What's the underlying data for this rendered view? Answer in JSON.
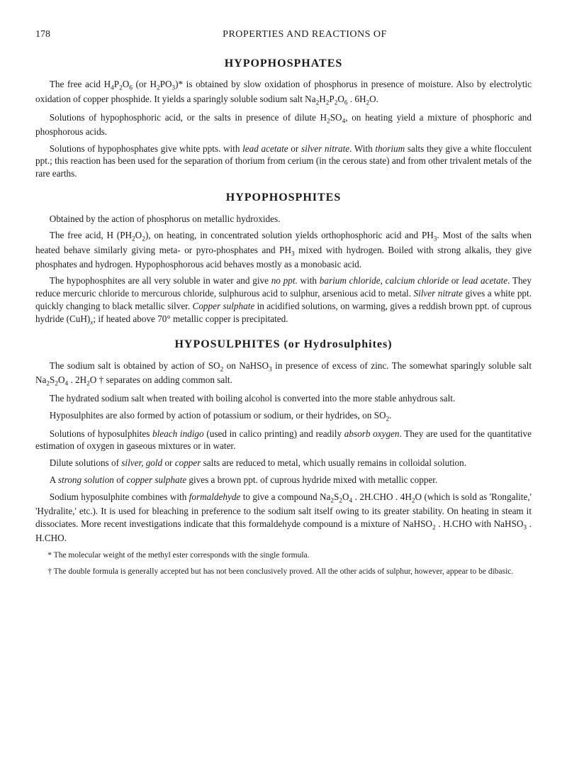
{
  "page_number": "178",
  "running_head": "PROPERTIES AND REACTIONS OF",
  "sections": [
    {
      "title": "HYPOPHOSPHATES",
      "paragraphs": [
        "The free acid H₄P₂O₆ (or H₂PO₃)* is obtained by slow oxidation of phosphorus in presence of moisture. Also by electrolytic oxidation of copper phosphide. It yields a sparingly soluble sodium salt Na₂H₂P₂O₆ . 6H₂O.",
        "Solutions of hypophosphoric acid, or the salts in presence of dilute H₂SO₄, on heating yield a mixture of phosphoric and phosphorous acids.",
        "Solutions of hypophosphates give white ppts. with lead acetate or silver nitrate. With thorium salts they give a white flocculent ppt.; this reaction has been used for the separation of thorium from cerium (in the cerous state) and from other trivalent metals of the rare earths."
      ]
    },
    {
      "title": "HYPOPHOSPHITES",
      "paragraphs": [
        "Obtained by the action of phosphorus on metallic hydroxides.",
        "The free acid, H (PH₂O₂), on heating, in concentrated solution yields orthophosphoric acid and PH₃. Most of the salts when heated behave similarly giving meta- or pyro-phosphates and PH₃ mixed with hydrogen. Boiled with strong alkalis, they give phosphates and hydrogen. Hypophosphorous acid behaves mostly as a monobasic acid.",
        "The hypophosphites are all very soluble in water and give no ppt. with barium chloride, calcium chloride or lead acetate. They reduce mercuric chloride to mercurous chloride, sulphurous acid to sulphur, arsenious acid to metal. Silver nitrate gives a white ppt. quickly changing to black metallic silver. Copper sulphate in acidified solutions, on warming, gives a reddish brown ppt. of cuprous hydride (CuH)ₓ; if heated above 70° metallic copper is precipitated."
      ]
    },
    {
      "title": "HYPOSULPHITES (or Hydrosulphites)",
      "paragraphs": [
        "The sodium salt is obtained by action of SO₂ on NaHSO₃ in presence of excess of zinc. The somewhat sparingly soluble salt Na₂S₂O₄ . 2H₂O † separates on adding common salt.",
        "The hydrated sodium salt when treated with boiling alcohol is converted into the more stable anhydrous salt.",
        "Hyposulphites are also formed by action of potassium or sodium, or their hydrides, on SO₂.",
        "Solutions of hyposulphites bleach indigo (used in calico printing) and readily absorb oxygen. They are used for the quantitative estimation of oxygen in gaseous mixtures or in water.",
        "Dilute solutions of silver, gold or copper salts are reduced to metal, which usually remains in colloidal solution.",
        "A strong solution of copper sulphate gives a brown ppt. of cuprous hydride mixed with metallic copper.",
        "Sodium hyposulphite combines with formaldehyde to give a compound Na₂S₂O₄ . 2H.CHO . 4H₂O (which is sold as 'Rongalite,' 'Hydralite,' etc.). It is used for bleaching in preference to the sodium salt itself owing to its greater stability. On heating in steam it dissociates. More recent investigations indicate that this formaldehyde compound is a mixture of NaHSO₂ . H.CHO with NaHSO₃ . H.CHO."
      ]
    }
  ],
  "footnotes": [
    "* The molecular weight of the methyl ester corresponds with the single formula.",
    "† The double formula is generally accepted but has not been conclusively proved. All the other acids of sulphur, however, appear to be dibasic."
  ],
  "typography": {
    "body_font_size": 13.2,
    "heading_font_size": 16,
    "footnote_font_size": 11.5,
    "background_color": "#ffffff",
    "text_color": "#1a1a1a"
  }
}
